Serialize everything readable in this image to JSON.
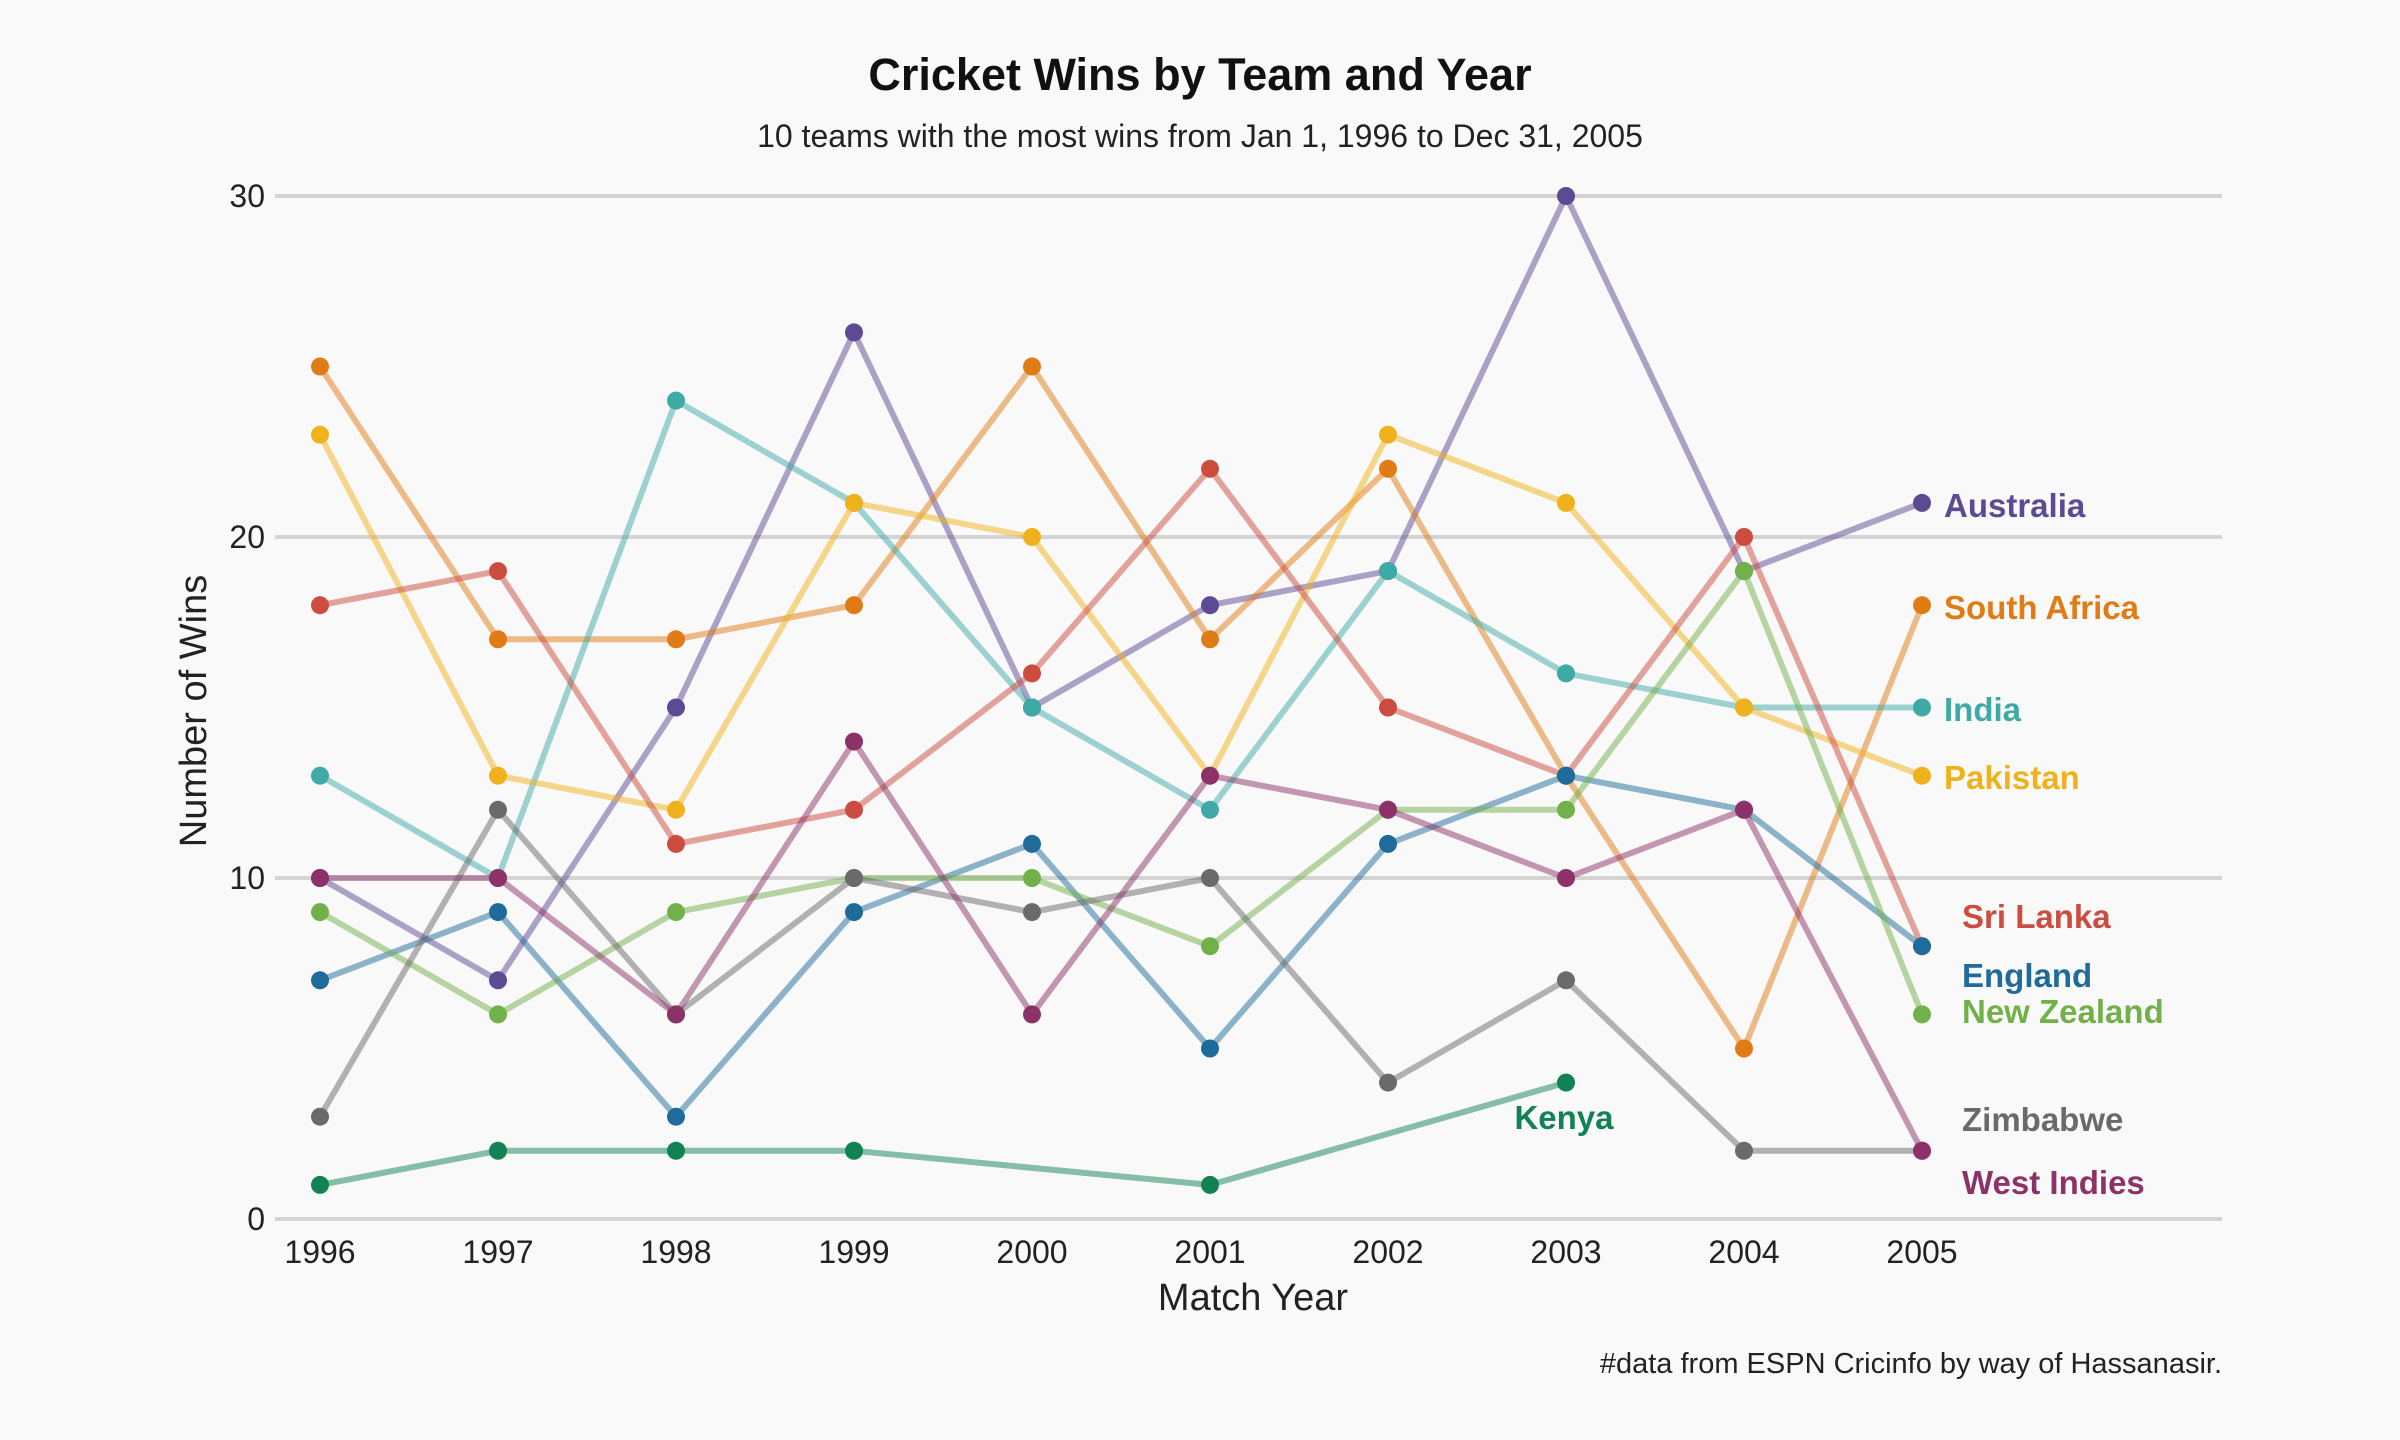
{
  "chart_data": {
    "type": "line",
    "title": "Cricket Wins by Team and Year",
    "subtitle": "10 teams with the most wins from Jan 1, 1996 to Dec 31, 2005",
    "xlabel": "Match Year",
    "ylabel": "Number of Wins",
    "caption": "#data from ESPN Cricinfo by way of Hassanasir.",
    "x": [
      1996,
      1997,
      1998,
      1999,
      2000,
      2001,
      2002,
      2003,
      2004,
      2005
    ],
    "x_tick_labels": [
      "1996",
      "1997",
      "1998",
      "1999",
      "2000",
      "2001",
      "2002",
      "2003",
      "2004",
      "2005"
    ],
    "ylim": [
      0,
      30
    ],
    "y_ticks": [
      0,
      10,
      20,
      30
    ],
    "y_tick_labels": [
      "0",
      "10",
      "20",
      "30"
    ],
    "grid": "horizontal",
    "legend": "direct labels at line ends",
    "series": [
      {
        "name": "Australia",
        "color": "#5d4a95",
        "x": [
          1996,
          1997,
          1998,
          1999,
          2000,
          2001,
          2002,
          2003,
          2004,
          2005
        ],
        "values": [
          10,
          7,
          15,
          26,
          15,
          18,
          19,
          30,
          19,
          21
        ]
      },
      {
        "name": "South Africa",
        "color": "#e07b16",
        "x": [
          1996,
          1997,
          1998,
          1999,
          2000,
          2001,
          2002,
          2003,
          2004,
          2005
        ],
        "values": [
          25,
          17,
          17,
          18,
          25,
          17,
          22,
          13,
          5,
          18
        ]
      },
      {
        "name": "India",
        "color": "#3fa9a6",
        "x": [
          1996,
          1997,
          1998,
          1999,
          2000,
          2001,
          2002,
          2003,
          2004,
          2005
        ],
        "values": [
          13,
          10,
          24,
          21,
          15,
          12,
          19,
          16,
          15,
          15
        ]
      },
      {
        "name": "Pakistan",
        "color": "#f0b21c",
        "x": [
          1996,
          1997,
          1998,
          1999,
          2000,
          2001,
          2002,
          2003,
          2004,
          2005
        ],
        "values": [
          23,
          13,
          12,
          21,
          20,
          13,
          23,
          21,
          15,
          13
        ]
      },
      {
        "name": "Sri Lanka",
        "color": "#cc4c40",
        "x": [
          1996,
          1997,
          1998,
          1999,
          2000,
          2001,
          2002,
          2003,
          2004,
          2005
        ],
        "values": [
          18,
          19,
          11,
          12,
          16,
          22,
          15,
          13,
          20,
          8
        ]
      },
      {
        "name": "England",
        "color": "#1f6b99",
        "x": [
          1996,
          1997,
          1998,
          1999,
          2000,
          2001,
          2002,
          2003,
          2004,
          2005
        ],
        "values": [
          7,
          9,
          3,
          9,
          11,
          5,
          11,
          13,
          12,
          8
        ]
      },
      {
        "name": "New Zealand",
        "color": "#72b04a",
        "x": [
          1996,
          1997,
          1998,
          1999,
          2000,
          2001,
          2002,
          2003,
          2004,
          2005
        ],
        "values": [
          9,
          6,
          9,
          10,
          10,
          8,
          12,
          12,
          19,
          6
        ]
      },
      {
        "name": "Zimbabwe",
        "color": "#6a6a6a",
        "x": [
          1996,
          1997,
          1998,
          1999,
          2000,
          2001,
          2002,
          2003,
          2004,
          2005
        ],
        "values": [
          3,
          12,
          6,
          10,
          9,
          10,
          4,
          7,
          2,
          2
        ]
      },
      {
        "name": "West Indies",
        "color": "#8c3269",
        "x": [
          1996,
          1997,
          1998,
          1999,
          2000,
          2001,
          2002,
          2003,
          2004,
          2005
        ],
        "values": [
          10,
          10,
          6,
          14,
          6,
          13,
          12,
          10,
          12,
          2
        ]
      },
      {
        "name": "Kenya",
        "color": "#128154",
        "x": [
          1996,
          1997,
          1998,
          1999,
          2001,
          2003
        ],
        "values": [
          1,
          2,
          2,
          2,
          1,
          4
        ]
      }
    ]
  }
}
